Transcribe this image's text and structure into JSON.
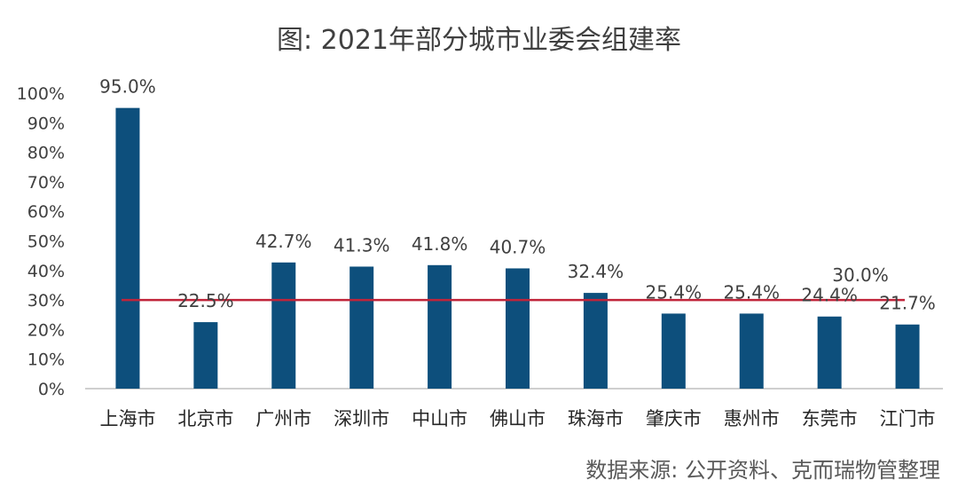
{
  "chart_data": {
    "type": "bar",
    "title": "图: 2021年部分城市业委会组建率",
    "categories": [
      "上海市",
      "北京市",
      "广州市",
      "深圳市",
      "中山市",
      "佛山市",
      "珠海市",
      "肇庆市",
      "惠州市",
      "东莞市",
      "江门市"
    ],
    "values": [
      95.0,
      22.5,
      42.7,
      41.3,
      41.8,
      40.7,
      32.4,
      25.4,
      25.4,
      24.4,
      21.7
    ],
    "data_labels": [
      "95.0%",
      "22.5%",
      "42.7%",
      "41.3%",
      "41.8%",
      "40.7%",
      "32.4%",
      "25.4%",
      "25.4%",
      "24.4%",
      "21.7%"
    ],
    "reference_line": {
      "value": 30.0,
      "label": "30.0%",
      "color": "#c0243a"
    },
    "ylim": [
      0,
      100
    ],
    "yticks": [
      "0%",
      "10%",
      "20%",
      "30%",
      "40%",
      "50%",
      "60%",
      "70%",
      "80%",
      "90%",
      "100%"
    ],
    "xlabel": "",
    "ylabel": "",
    "bar_color": "#0d4f7c",
    "grid": false,
    "legend": "none"
  },
  "source": "数据来源: 公开资料、克而瑞物管整理"
}
